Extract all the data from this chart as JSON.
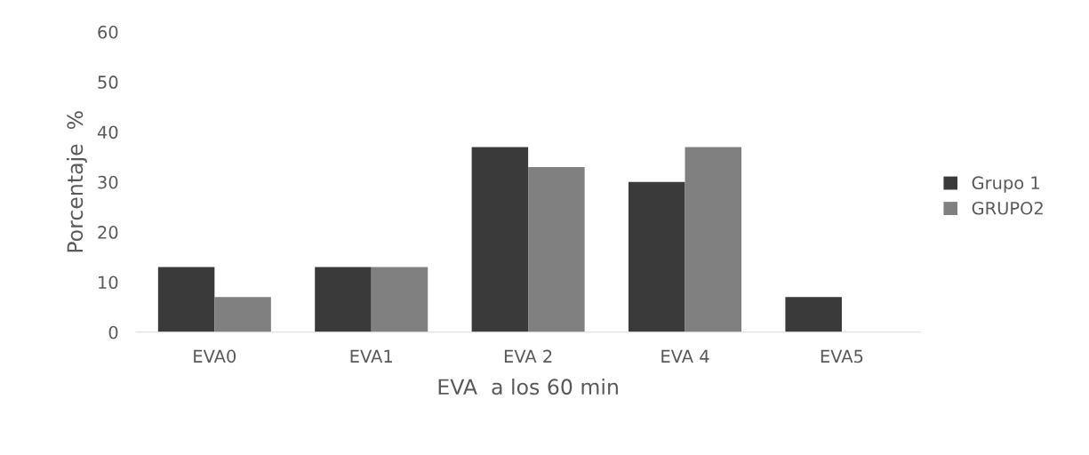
{
  "chart_data": {
    "type": "bar",
    "xlabel": "EVA  a los 60 min",
    "ylabel": "Porcentaje  %",
    "categories": [
      "EVA0",
      "EVA1",
      "EVA 2",
      "EVA 4",
      "EVA5"
    ],
    "series": [
      {
        "name": "Grupo 1",
        "color": "#3a3a3a",
        "values": [
          13,
          13,
          37,
          30,
          7
        ]
      },
      {
        "name": "GRUPO2",
        "color": "#808080",
        "values": [
          7,
          13,
          33,
          37,
          0
        ]
      }
    ],
    "ylim": [
      0,
      60
    ],
    "yticks": [
      0,
      10,
      20,
      30,
      40,
      50,
      60
    ],
    "grid": false,
    "legend": "right"
  }
}
